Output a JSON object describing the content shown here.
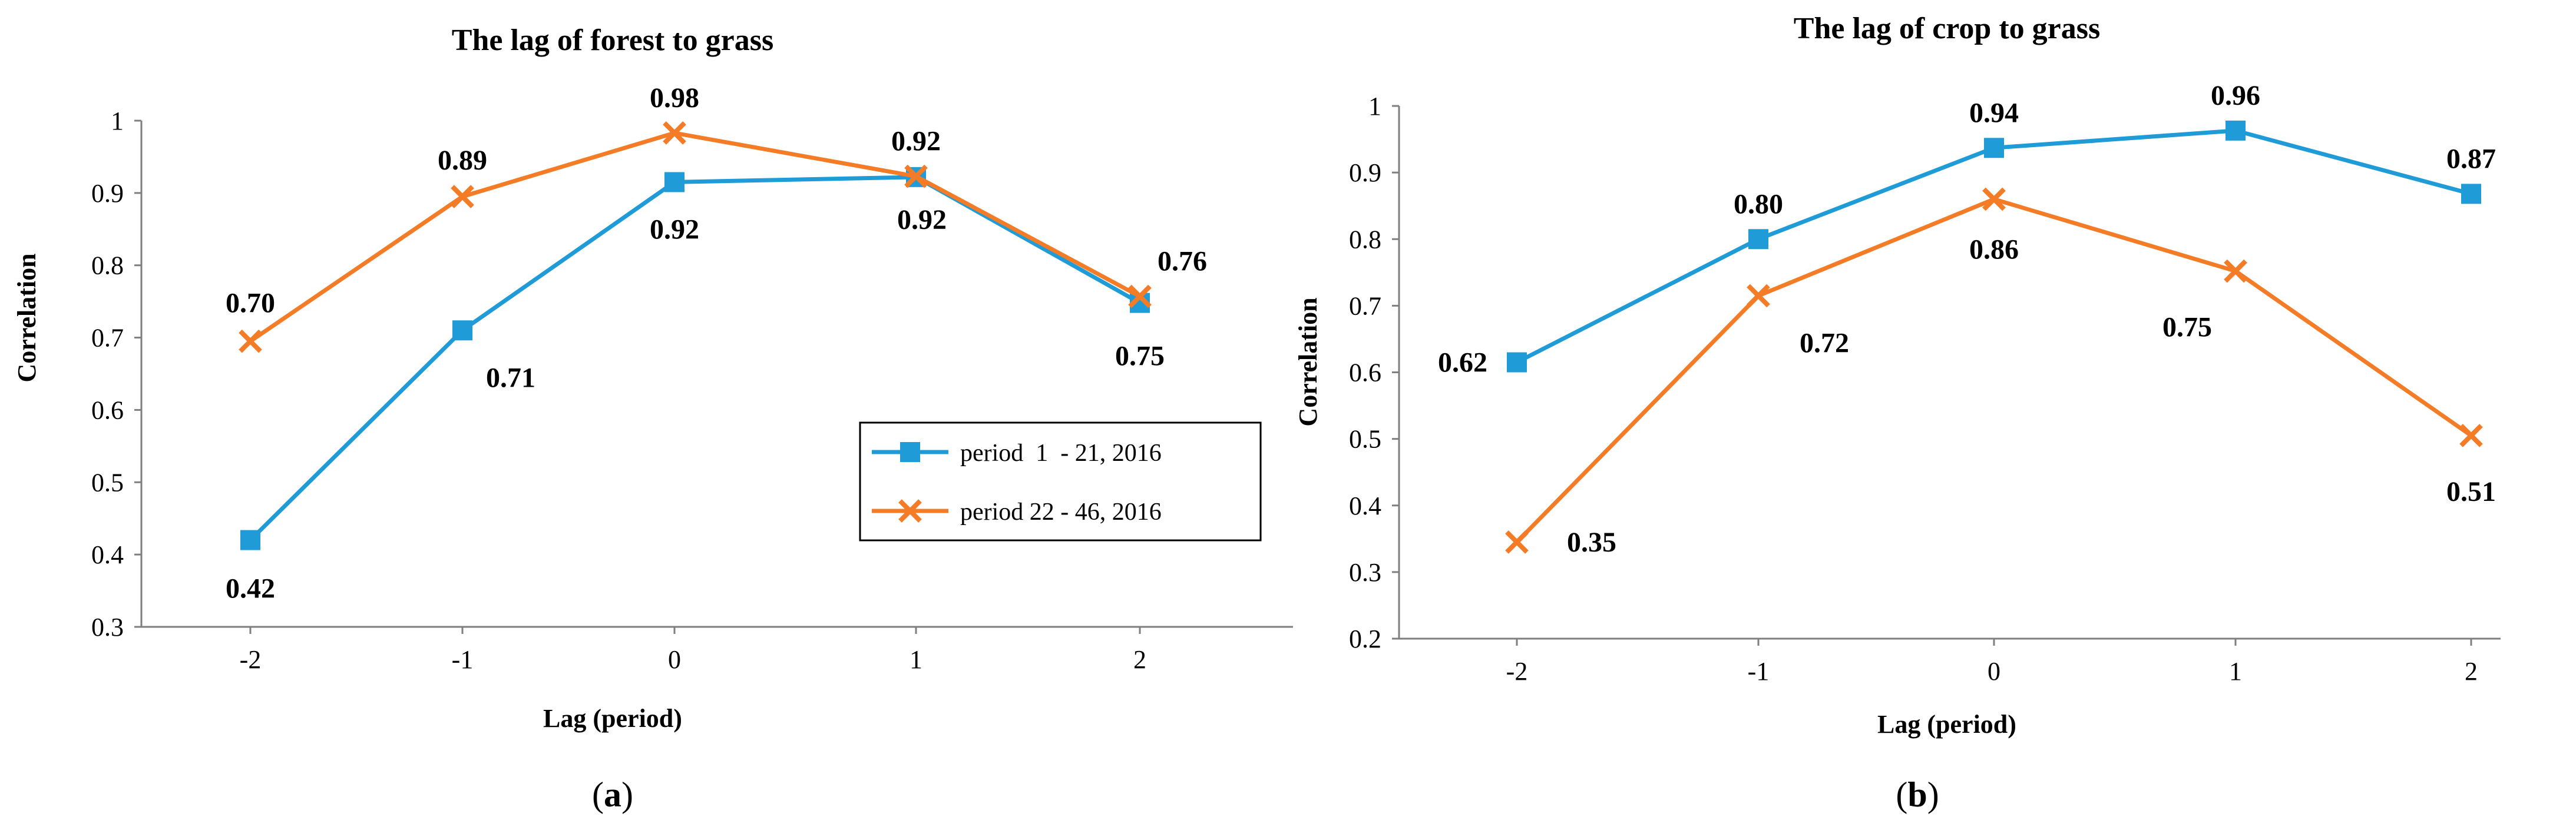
{
  "colors": {
    "series1": "#1F9BD7",
    "series2": "#F47C26",
    "axis": "#7f7f7f"
  },
  "chart_data": [
    {
      "type": "line",
      "title": "The lag of forest to grass",
      "xlabel": "Lag (period)",
      "ylabel": "Correlation",
      "categories": [
        "-2",
        "-1",
        "0",
        "1",
        "2"
      ],
      "ylim": [
        0.3,
        1
      ],
      "yticks": [
        "0.3",
        "0.4",
        "0.5",
        "0.6",
        "0.7",
        "0.8",
        "0.9",
        "1"
      ],
      "series": [
        {
          "name": "period  1  - 21, 2016",
          "marker": "square",
          "values": [
            0.42,
            0.71,
            0.915,
            0.922,
            0.748
          ],
          "labels": [
            "0.42",
            "0.71",
            "0.92",
            "0.92",
            "0.75"
          ]
        },
        {
          "name": "period 22 - 46, 2016",
          "marker": "x",
          "values": [
            0.695,
            0.895,
            0.983,
            0.923,
            0.757
          ],
          "labels": [
            "0.70",
            "0.89",
            "0.98",
            "0.92",
            "0.76"
          ]
        }
      ],
      "legend": "bottom-right",
      "caption": {
        "open": "(",
        "letter": "a",
        "close": ")"
      }
    },
    {
      "type": "line",
      "title": "The lag of crop to grass",
      "xlabel": "Lag (period)",
      "ylabel": "Correlation",
      "categories": [
        "-2",
        "-1",
        "0",
        "1",
        "2"
      ],
      "ylim": [
        0.2,
        1
      ],
      "yticks": [
        "0.2",
        "0.3",
        "0.4",
        "0.5",
        "0.6",
        "0.7",
        "0.8",
        "0.9",
        "1"
      ],
      "series": [
        {
          "name": "period  1  - 21, 2016",
          "marker": "square",
          "values": [
            0.615,
            0.8,
            0.937,
            0.963,
            0.868
          ],
          "labels": [
            "0.62",
            "0.80",
            "0.94",
            "0.96",
            "0.87"
          ]
        },
        {
          "name": "period 22 - 46, 2016",
          "marker": "x",
          "values": [
            0.345,
            0.715,
            0.86,
            0.752,
            0.505
          ],
          "labels": [
            "0.35",
            "0.72",
            "0.86",
            "0.75",
            "0.51"
          ]
        }
      ],
      "legend": "none",
      "caption": {
        "open": "(",
        "letter": "b",
        "close": ")"
      }
    }
  ]
}
